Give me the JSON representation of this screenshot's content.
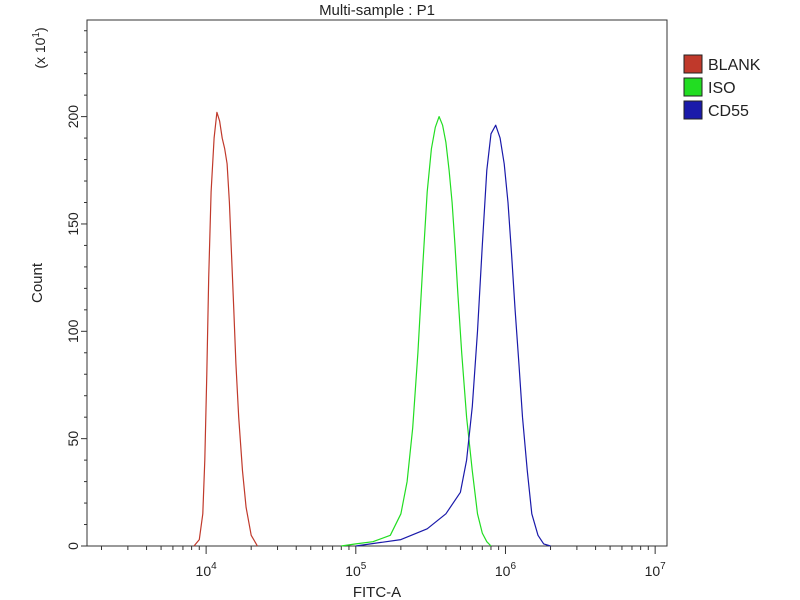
{
  "chart_data": {
    "type": "line",
    "title": "Multi-sample : P1",
    "xlabel": "FITC-A",
    "ylabel": "Count",
    "y_multiplier": {
      "prefix": "(x 10",
      "exp": "1",
      "suffix": ")"
    },
    "x_scale": "log",
    "xlim": [
      1600,
      12000000
    ],
    "ylim": [
      0,
      245
    ],
    "grid": false,
    "legend_position": "top-right",
    "x_ticks": [
      {
        "value": 10000,
        "base": "10",
        "exp": "4"
      },
      {
        "value": 100000,
        "base": "10",
        "exp": "5"
      },
      {
        "value": 1000000,
        "base": "10",
        "exp": "6"
      },
      {
        "value": 10000000,
        "base": "10",
        "exp": "7"
      }
    ],
    "y_ticks": [
      {
        "value": 0,
        "label": "0"
      },
      {
        "value": 50,
        "label": "50"
      },
      {
        "value": 100,
        "label": "100"
      },
      {
        "value": 150,
        "label": "150"
      },
      {
        "value": 200,
        "label": "200"
      }
    ],
    "series": [
      {
        "name": "BLANK",
        "color": "#c0392b",
        "points": [
          [
            8300,
            0
          ],
          [
            9000,
            3
          ],
          [
            9500,
            15
          ],
          [
            9800,
            40
          ],
          [
            10100,
            80
          ],
          [
            10400,
            125
          ],
          [
            10800,
            165
          ],
          [
            11300,
            190
          ],
          [
            11800,
            202
          ],
          [
            12300,
            198
          ],
          [
            12800,
            190
          ],
          [
            13300,
            185
          ],
          [
            13800,
            178
          ],
          [
            14300,
            160
          ],
          [
            14800,
            135
          ],
          [
            15300,
            110
          ],
          [
            15800,
            85
          ],
          [
            16500,
            60
          ],
          [
            17500,
            35
          ],
          [
            18500,
            18
          ],
          [
            20000,
            5
          ],
          [
            22000,
            0
          ]
        ]
      },
      {
        "name": "ISO",
        "color": "#22dd22",
        "points": [
          [
            80000,
            0
          ],
          [
            100000,
            1
          ],
          [
            130000,
            2
          ],
          [
            170000,
            5
          ],
          [
            200000,
            15
          ],
          [
            220000,
            30
          ],
          [
            240000,
            55
          ],
          [
            260000,
            90
          ],
          [
            280000,
            130
          ],
          [
            300000,
            165
          ],
          [
            320000,
            185
          ],
          [
            340000,
            195
          ],
          [
            360000,
            200
          ],
          [
            380000,
            196
          ],
          [
            400000,
            188
          ],
          [
            420000,
            175
          ],
          [
            440000,
            160
          ],
          [
            460000,
            140
          ],
          [
            480000,
            118
          ],
          [
            510000,
            90
          ],
          [
            550000,
            60
          ],
          [
            600000,
            35
          ],
          [
            650000,
            15
          ],
          [
            700000,
            6
          ],
          [
            750000,
            2
          ],
          [
            800000,
            0
          ]
        ]
      },
      {
        "name": "CD55",
        "color": "#1a1aaa",
        "points": [
          [
            100000,
            0
          ],
          [
            200000,
            3
          ],
          [
            300000,
            8
          ],
          [
            400000,
            15
          ],
          [
            500000,
            25
          ],
          [
            550000,
            40
          ],
          [
            600000,
            65
          ],
          [
            650000,
            100
          ],
          [
            700000,
            140
          ],
          [
            750000,
            175
          ],
          [
            800000,
            192
          ],
          [
            860000,
            196
          ],
          [
            920000,
            190
          ],
          [
            980000,
            178
          ],
          [
            1040000,
            160
          ],
          [
            1100000,
            135
          ],
          [
            1160000,
            110
          ],
          [
            1230000,
            85
          ],
          [
            1300000,
            60
          ],
          [
            1400000,
            35
          ],
          [
            1500000,
            15
          ],
          [
            1650000,
            5
          ],
          [
            1800000,
            1
          ],
          [
            2000000,
            0
          ]
        ]
      }
    ]
  }
}
